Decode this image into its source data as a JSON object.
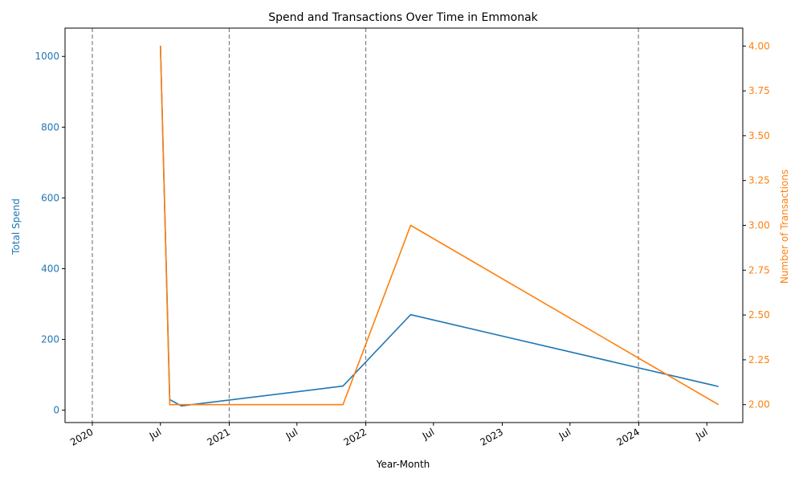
{
  "chart_data": {
    "type": "line",
    "title": "Spend and Transactions Over Time in Emmonak",
    "xlabel": "Year-Month",
    "x_ticks": [
      {
        "date": "2020-01-01",
        "label": "2020"
      },
      {
        "date": "2020-07-01",
        "label": "Jul"
      },
      {
        "date": "2021-01-01",
        "label": "2021"
      },
      {
        "date": "2021-07-01",
        "label": "Jul"
      },
      {
        "date": "2022-01-01",
        "label": "2022"
      },
      {
        "date": "2022-07-01",
        "label": "Jul"
      },
      {
        "date": "2023-01-01",
        "label": "2023"
      },
      {
        "date": "2023-07-01",
        "label": "Jul"
      },
      {
        "date": "2024-01-01",
        "label": "2024"
      },
      {
        "date": "2024-07-01",
        "label": "Jul"
      }
    ],
    "xlim": [
      "2019-10-20",
      "2024-10-05"
    ],
    "vlines": [
      "2020-01-01",
      "2021-01-01",
      "2022-01-01",
      "2023-12-31"
    ],
    "left_axis": {
      "label": "Total Spend",
      "color": "#1f77b4",
      "ylim": [
        -35,
        1080
      ],
      "ticks": [
        0,
        200,
        400,
        600,
        800,
        1000
      ],
      "tick_labels": [
        "0",
        "200",
        "400",
        "600",
        "800",
        "1000"
      ]
    },
    "right_axis": {
      "label": "Number of Transactions",
      "color": "#ff7f0e",
      "ylim": [
        1.9,
        4.1
      ],
      "ticks": [
        2.0,
        2.25,
        2.5,
        2.75,
        3.0,
        3.25,
        3.5,
        3.75,
        4.0
      ],
      "tick_labels": [
        "2.00",
        "2.25",
        "2.50",
        "2.75",
        "3.00",
        "3.25",
        "3.50",
        "3.75",
        "4.00"
      ]
    },
    "series": [
      {
        "axis": "left",
        "color": "#1f77b4",
        "points": [
          {
            "x": "2020-07-01",
            "y": 1030
          },
          {
            "x": "2020-07-26",
            "y": 30
          },
          {
            "x": "2020-08-26",
            "y": 12
          },
          {
            "x": "2021-11-01",
            "y": 68
          },
          {
            "x": "2022-05-01",
            "y": 270
          },
          {
            "x": "2024-08-01",
            "y": 67
          }
        ]
      },
      {
        "axis": "right",
        "color": "#ff7f0e",
        "points": [
          {
            "x": "2020-07-01",
            "y": 4.0
          },
          {
            "x": "2020-07-26",
            "y": 2.0
          },
          {
            "x": "2021-11-01",
            "y": 2.0
          },
          {
            "x": "2022-05-01",
            "y": 3.0
          },
          {
            "x": "2024-08-01",
            "y": 2.0
          }
        ]
      }
    ],
    "grid": false,
    "legend": "none"
  }
}
